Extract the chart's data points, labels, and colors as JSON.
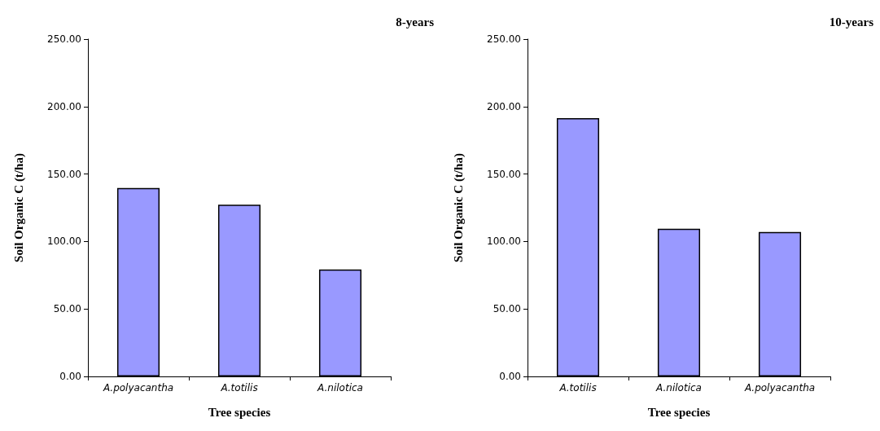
{
  "chart_data": [
    {
      "type": "bar",
      "title": "8-years",
      "xlabel": "Tree species",
      "ylabel": "Soil Organic C (t/ha)",
      "categories": [
        "A.polyacantha",
        "A.totilis",
        "A.nilotica"
      ],
      "values": [
        139.6,
        127.3,
        79.2
      ],
      "color": "#9999ff",
      "ylim": [
        0,
        250
      ],
      "yticks": [
        {
          "value": 0,
          "label": "0.00"
        },
        {
          "value": 50,
          "label": "50.00"
        },
        {
          "value": 100,
          "label": "100.00"
        },
        {
          "value": 150,
          "label": "150.00"
        },
        {
          "value": 200,
          "label": "200.00"
        },
        {
          "value": 250,
          "label": "250.00"
        }
      ],
      "grid": false
    },
    {
      "type": "bar",
      "title": "10-years",
      "xlabel": "Tree species",
      "ylabel": "Soil Organic C (t/ha)",
      "categories": [
        "A.totilis",
        "A.nilotica",
        "A.polyacantha"
      ],
      "values": [
        191.4,
        109.5,
        107.1
      ],
      "color": "#9999ff",
      "ylim": [
        0,
        250
      ],
      "yticks": [
        {
          "value": 0,
          "label": "0.00"
        },
        {
          "value": 50,
          "label": "50.00"
        },
        {
          "value": 100,
          "label": "100.00"
        },
        {
          "value": 150,
          "label": "150.00"
        },
        {
          "value": 200,
          "label": "200.00"
        },
        {
          "value": 250,
          "label": "250.00"
        }
      ],
      "grid": false
    }
  ]
}
